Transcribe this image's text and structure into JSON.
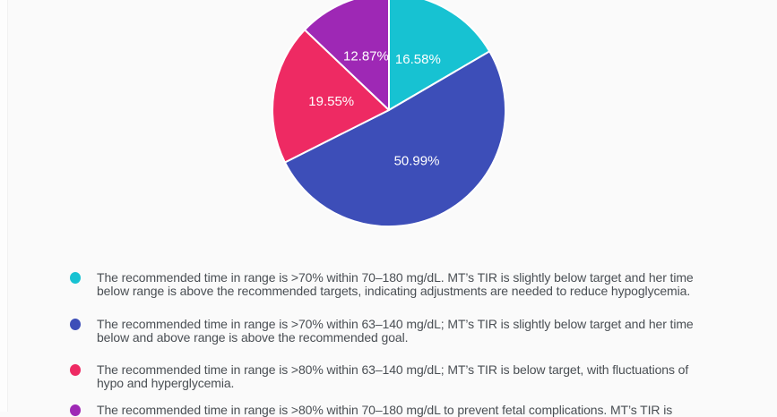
{
  "page": {
    "background": "#fafafa",
    "text_color": "#4a4f54"
  },
  "chart_data": {
    "type": "pie",
    "title": "",
    "start_angle_deg": 0,
    "direction": "clockwise",
    "legend_position": "bottom",
    "label_color": "#ffffff",
    "slice_border_color": "#ffffff",
    "slices": [
      {
        "value": 16.58,
        "display_label": "16.58%",
        "color": "#17c2d2",
        "description_line1": "The recommended time in range is >70% within 70–180 mg/dL. MT’s TIR is slightly below target and her time",
        "description_line2": "below range is above the recommended targets, indicating adjustments are needed to reduce hypoglycemia."
      },
      {
        "value": 50.99,
        "display_label": "50.99%",
        "color": "#3d4eb8",
        "description_line1": "The recommended time in range is >70% within 63–140 mg/dL; MT’s TIR is slightly below target and her time",
        "description_line2": "below and above range is above the recommended goal."
      },
      {
        "value": 19.55,
        "display_label": "19.55%",
        "color": "#ee2a63",
        "description_line1": "The recommended time in range is >80% within 63–140 mg/dL; MT’s TIR is below target, with fluctuations of",
        "description_line2": "hypo and hyperglycemia."
      },
      {
        "value": 12.87,
        "display_label": "12.87%",
        "color": "#9e28b5",
        "description_line1": "The recommended time in range is >80% within 70–180 mg/dL to prevent fetal complications. MT’s TIR is",
        "description_line2": ""
      }
    ]
  }
}
